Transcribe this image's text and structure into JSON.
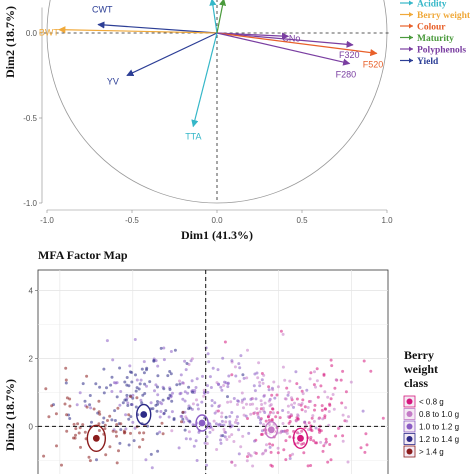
{
  "chart_data": [
    {
      "type": "scatter",
      "subtype": "correlation-circle",
      "title": "",
      "xlabel": "Dim1 (41.3%)",
      "ylabel": "Dim2 (18.7%)",
      "xlim": [
        -1.0,
        1.0
      ],
      "ylim": [
        -1.0,
        0.15
      ],
      "x_ticks": [
        "-1.0",
        "-0.5",
        "0.0",
        "0.5",
        "1.0"
      ],
      "y_ticks": [
        "-1.0",
        "-0.5",
        "0.0"
      ],
      "grid": false,
      "legend_position": "right",
      "groups": [
        {
          "name": "Acidity",
          "color": "#35b7c8"
        },
        {
          "name": "Berry weight",
          "color": "#f0a93a"
        },
        {
          "name": "Colour",
          "color": "#e8602a"
        },
        {
          "name": "Maturity",
          "color": "#4a9a3c"
        },
        {
          "name": "Polyphenols",
          "color": "#7a3ea1"
        },
        {
          "name": "Yield",
          "color": "#2c3e96"
        }
      ],
      "variables": [
        {
          "label": "CWT",
          "x": -0.7,
          "y": 0.05,
          "group": "Yield"
        },
        {
          "label": "BWT",
          "x": -0.93,
          "y": 0.02,
          "group": "Berry weight"
        },
        {
          "label": "YV",
          "x": -0.53,
          "y": -0.25,
          "group": "Yield"
        },
        {
          "label": "CNo",
          "x": 0.42,
          "y": -0.02,
          "group": "Polyphenols"
        },
        {
          "label": "F320",
          "x": 0.8,
          "y": -0.07,
          "group": "Polyphenols"
        },
        {
          "label": "F520",
          "x": 0.94,
          "y": -0.12,
          "group": "Colour"
        },
        {
          "label": "F280",
          "x": 0.78,
          "y": -0.18,
          "group": "Polyphenols"
        },
        {
          "label": "TTA",
          "x": -0.14,
          "y": -0.55,
          "group": "Acidity"
        },
        {
          "label": "",
          "x": -0.03,
          "y": 0.2,
          "group": "Acidity"
        },
        {
          "label": "",
          "x": 0.04,
          "y": 0.2,
          "group": "Maturity"
        }
      ]
    },
    {
      "type": "scatter",
      "subtype": "individual-factor-map",
      "title": "MFA Factor Map",
      "xlabel": "",
      "ylabel": "Dim2 (18.7%)",
      "xlim": [
        -4.6,
        5.0
      ],
      "ylim": [
        -1.4,
        4.6
      ],
      "y_ticks": [
        "0",
        "2",
        "4"
      ],
      "grid": true,
      "legend_position": "right",
      "legend_title": [
        "Berry",
        "weight",
        "class"
      ],
      "classes": [
        {
          "name": "< 0.8 g",
          "color": "#d6177d",
          "centroid": [
            2.6,
            -0.35
          ]
        },
        {
          "name": "0.8 to 1.0 g",
          "color": "#c47ac6",
          "centroid": [
            1.8,
            -0.1
          ]
        },
        {
          "name": "1.0 to 1.2 g",
          "color": "#8a5cc4",
          "centroid": [
            -0.1,
            0.1
          ]
        },
        {
          "name": "1.2 to 1.4 g",
          "color": "#2c2a87",
          "centroid": [
            -1.7,
            0.35
          ]
        },
        {
          "name": "> 1.4 g",
          "color": "#8b1c1c",
          "centroid": [
            -3.0,
            -0.35
          ]
        }
      ]
    }
  ]
}
